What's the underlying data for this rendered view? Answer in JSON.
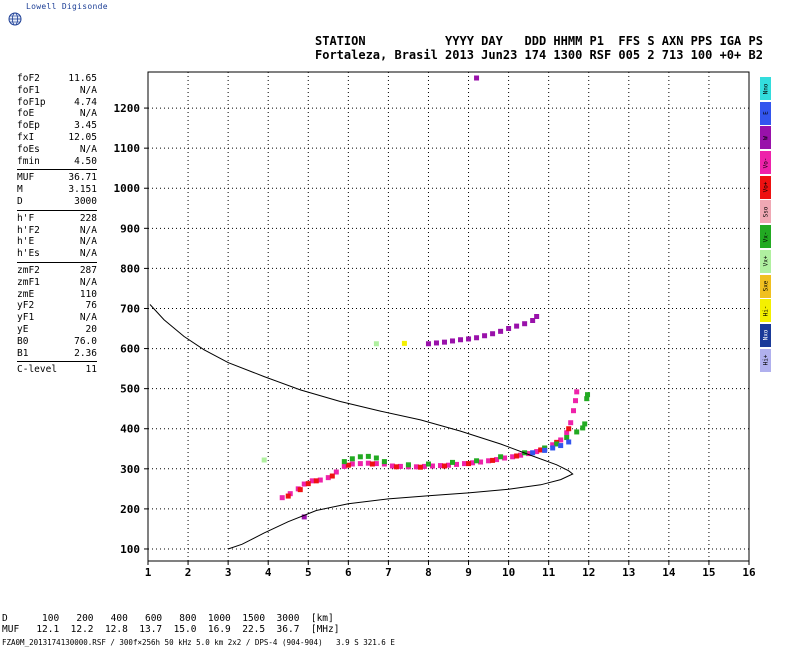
{
  "logo_text": "Lowell Digisonde",
  "header": {
    "line1": "STATION           YYYY DAY   DDD HHMM P1  FFS S AXN PPS IGA PS",
    "line2": "Fortaleza, Brasil 2013 Jun23 174 1300 RSF 005 2 713 100 +0+ B2"
  },
  "params": [
    {
      "group": [
        {
          "label": "foF2",
          "value": "11.65"
        },
        {
          "label": "foF1",
          "value": "N/A"
        },
        {
          "label": "foF1p",
          "value": "4.74"
        },
        {
          "label": "foE",
          "value": "N/A"
        },
        {
          "label": "foEp",
          "value": "3.45"
        },
        {
          "label": "fxI",
          "value": "12.05"
        },
        {
          "label": "foEs",
          "value": "N/A"
        },
        {
          "label": "fmin",
          "value": "4.50"
        }
      ]
    },
    {
      "group": [
        {
          "label": "MUF",
          "value": "36.71"
        },
        {
          "label": "M",
          "value": "3.151"
        },
        {
          "label": "D",
          "value": "3000"
        }
      ]
    },
    {
      "group": [
        {
          "label": "h'F",
          "value": "228"
        },
        {
          "label": "h'F2",
          "value": "N/A"
        },
        {
          "label": "h'E",
          "value": "N/A"
        },
        {
          "label": "h'Es",
          "value": "N/A"
        }
      ]
    },
    {
      "group": [
        {
          "label": "zmF2",
          "value": "287"
        },
        {
          "label": "zmF1",
          "value": "N/A"
        },
        {
          "label": "zmE",
          "value": "110"
        },
        {
          "label": "yF2",
          "value": "76"
        },
        {
          "label": "yF1",
          "value": "N/A"
        },
        {
          "label": "yE",
          "value": "20"
        },
        {
          "label": "B0",
          "value": "76.0"
        },
        {
          "label": "B1",
          "value": "2.36"
        }
      ]
    },
    {
      "group": [
        {
          "label": "C-level",
          "value": "11"
        }
      ]
    }
  ],
  "legend": [
    {
      "label": "Nno",
      "color": "#33dddd"
    },
    {
      "label": "E",
      "color": "#3355ee"
    },
    {
      "label": "W",
      "color": "#9911aa"
    },
    {
      "label": "Vo-",
      "color": "#ee22aa"
    },
    {
      "label": "Vo+",
      "color": "#ee1111"
    },
    {
      "label": "Sso",
      "color": "#f0a8b4"
    },
    {
      "label": "Vx-",
      "color": "#22aa22"
    },
    {
      "label": "Vx+",
      "color": "#b0f0a0"
    },
    {
      "label": "Sxe",
      "color": "#f0c020"
    },
    {
      "label": "Hi-",
      "color": "#f4f000"
    },
    {
      "label": "Nxo",
      "color": "#1a3a99"
    },
    {
      "label": "Hi+",
      "color": "#b0b0ee"
    }
  ],
  "muf_table": {
    "d_label": "D",
    "d_values": [
      "100",
      "200",
      "400",
      "600",
      "800",
      "1000",
      "1500",
      "3000"
    ],
    "d_unit": "[km]",
    "muf_label": "MUF",
    "muf_values": [
      "12.1",
      "12.2",
      "12.8",
      "13.7",
      "15.0",
      "16.9",
      "22.5",
      "36.7"
    ],
    "muf_unit": "[MHz]"
  },
  "footer": "FZA0M_2013174130000.RSF / 300f×256h 50 kHz 5.0 km 2x2 / DPS-4 (904-904)   3.9 S 321.6 E",
  "chart_data": {
    "type": "scatter",
    "xlim": [
      1,
      16
    ],
    "ylim": [
      70,
      1290
    ],
    "x_ticks": [
      1,
      2,
      3,
      4,
      5,
      6,
      7,
      8,
      9,
      10,
      11,
      12,
      13,
      14,
      15,
      16
    ],
    "y_ticks": [
      100,
      200,
      300,
      400,
      500,
      600,
      700,
      800,
      900,
      1000,
      1100,
      1200
    ],
    "grid": true,
    "profile_curve": [
      [
        3.0,
        100
      ],
      [
        3.35,
        112
      ],
      [
        3.9,
        140
      ],
      [
        4.5,
        168
      ],
      [
        5.2,
        196
      ],
      [
        6.0,
        213
      ],
      [
        7.0,
        225
      ],
      [
        8.0,
        233
      ],
      [
        9.0,
        240
      ],
      [
        10.0,
        249
      ],
      [
        10.8,
        260
      ],
      [
        11.3,
        273
      ],
      [
        11.6,
        287
      ],
      [
        11.5,
        295
      ],
      [
        11.2,
        310
      ],
      [
        10.6,
        332
      ],
      [
        9.8,
        362
      ],
      [
        8.8,
        394
      ],
      [
        7.8,
        422
      ],
      [
        6.8,
        444
      ],
      [
        5.8,
        468
      ],
      [
        4.8,
        497
      ],
      [
        3.9,
        530
      ],
      [
        3.0,
        565
      ],
      [
        2.4,
        597
      ],
      [
        1.9,
        630
      ],
      [
        1.4,
        672
      ],
      [
        1.05,
        710
      ]
    ],
    "traces": [
      {
        "name": "Vo-",
        "color": "#ee22aa",
        "points": [
          [
            4.35,
            228
          ],
          [
            4.55,
            238
          ],
          [
            4.75,
            250
          ],
          [
            4.9,
            262
          ],
          [
            5.1,
            270
          ],
          [
            5.3,
            272
          ],
          [
            5.5,
            278
          ],
          [
            5.7,
            292
          ],
          [
            5.9,
            306
          ],
          [
            6.1,
            312
          ],
          [
            6.3,
            313
          ],
          [
            6.5,
            314
          ],
          [
            6.7,
            313
          ],
          [
            6.9,
            312
          ],
          [
            7.1,
            307
          ],
          [
            7.3,
            306
          ],
          [
            7.5,
            305
          ],
          [
            7.7,
            305
          ],
          [
            7.9,
            306
          ],
          [
            8.1,
            307
          ],
          [
            8.3,
            308
          ],
          [
            8.5,
            309
          ],
          [
            8.7,
            311
          ],
          [
            8.9,
            313
          ],
          [
            9.1,
            315
          ],
          [
            9.3,
            317
          ],
          [
            9.5,
            320
          ],
          [
            9.7,
            323
          ],
          [
            9.9,
            327
          ],
          [
            10.1,
            330
          ],
          [
            10.3,
            334
          ],
          [
            10.5,
            338
          ],
          [
            10.7,
            343
          ],
          [
            10.9,
            350
          ],
          [
            11.1,
            360
          ],
          [
            11.3,
            372
          ],
          [
            11.45,
            390
          ],
          [
            11.55,
            415
          ],
          [
            11.62,
            445
          ],
          [
            11.67,
            470
          ],
          [
            11.7,
            492
          ]
        ]
      },
      {
        "name": "Vo+",
        "color": "#ee1111",
        "points": [
          [
            4.5,
            232
          ],
          [
            4.8,
            248
          ],
          [
            5.0,
            263
          ],
          [
            5.2,
            270
          ],
          [
            5.6,
            282
          ],
          [
            6.0,
            309
          ],
          [
            6.6,
            312
          ],
          [
            7.2,
            305
          ],
          [
            7.8,
            304
          ],
          [
            8.4,
            307
          ],
          [
            9.0,
            313
          ],
          [
            9.6,
            321
          ],
          [
            10.2,
            332
          ],
          [
            10.8,
            347
          ],
          [
            11.2,
            366
          ],
          [
            11.5,
            400
          ]
        ]
      },
      {
        "name": "Vx-",
        "color": "#22aa22",
        "points": [
          [
            5.9,
            318
          ],
          [
            6.1,
            325
          ],
          [
            6.3,
            330
          ],
          [
            6.5,
            331
          ],
          [
            6.7,
            327
          ],
          [
            6.9,
            318
          ],
          [
            7.5,
            310
          ],
          [
            8.0,
            312
          ],
          [
            8.6,
            316
          ],
          [
            9.2,
            320
          ],
          [
            9.8,
            330
          ],
          [
            10.4,
            340
          ],
          [
            10.9,
            352
          ],
          [
            11.2,
            362
          ],
          [
            11.45,
            378
          ],
          [
            11.7,
            392
          ],
          [
            11.85,
            402
          ],
          [
            11.9,
            412
          ],
          [
            11.95,
            475
          ],
          [
            11.97,
            485
          ]
        ]
      },
      {
        "name": "E",
        "color": "#3355ee",
        "points": [
          [
            10.6,
            340
          ],
          [
            10.9,
            346
          ],
          [
            11.1,
            352
          ],
          [
            11.3,
            358
          ],
          [
            11.5,
            367
          ]
        ]
      },
      {
        "name": "W",
        "color": "#9911aa",
        "points": [
          [
            8.0,
            612
          ],
          [
            8.2,
            614
          ],
          [
            8.4,
            616
          ],
          [
            8.6,
            619
          ],
          [
            8.8,
            622
          ],
          [
            9.0,
            624
          ],
          [
            9.2,
            627
          ],
          [
            9.4,
            632
          ],
          [
            9.6,
            637
          ],
          [
            9.8,
            643
          ],
          [
            10.0,
            650
          ],
          [
            10.2,
            656
          ],
          [
            10.4,
            662
          ],
          [
            10.6,
            670
          ],
          [
            10.7,
            680
          ],
          [
            4.9,
            180
          ],
          [
            9.2,
            1275
          ]
        ]
      },
      {
        "name": "Vx+",
        "color": "#b0f0a0",
        "points": [
          [
            6.7,
            612
          ],
          [
            3.9,
            322
          ]
        ]
      },
      {
        "name": "Hi-",
        "color": "#f4f000",
        "points": [
          [
            7.4,
            613
          ]
        ]
      }
    ]
  }
}
